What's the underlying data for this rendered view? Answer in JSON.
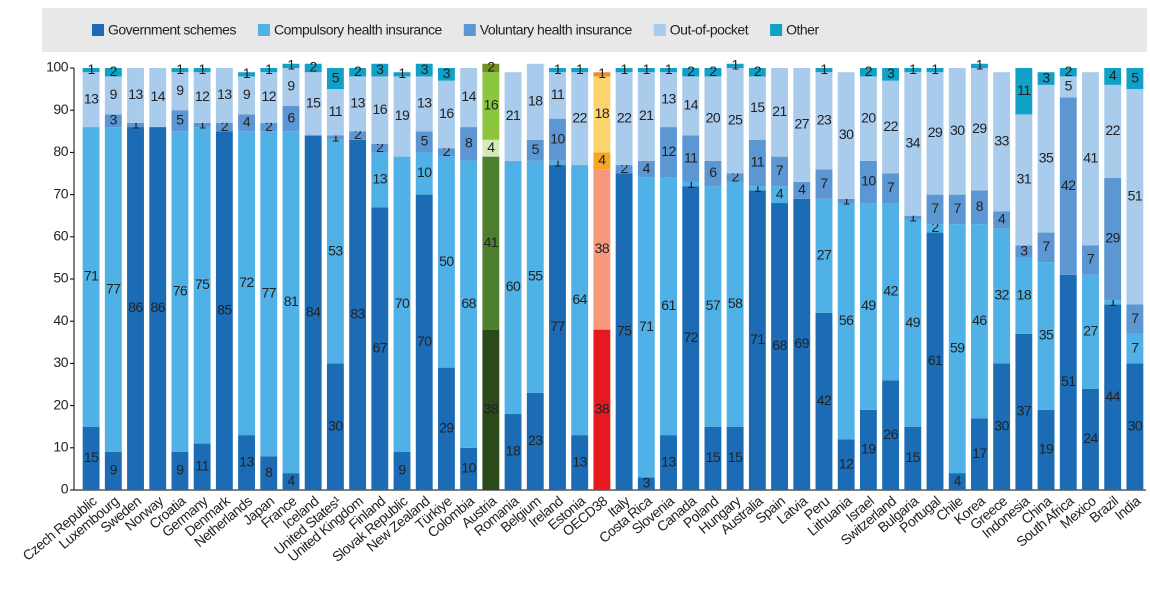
{
  "chart_data": {
    "type": "stacked_bar",
    "categories": [
      "Czech Republic",
      "Luxembourg",
      "Sweden",
      "Norway",
      "Croatia",
      "Germany",
      "Denmark",
      "Netherlands",
      "Japan",
      "France",
      "Iceland",
      "United States¹",
      "United Kingdom",
      "Finland",
      "Slovak Republic",
      "New Zealand",
      "Türkiye",
      "Colombia",
      "Austria",
      "Romania",
      "Belgium",
      "Ireland",
      "Estonia",
      "OECD38",
      "Italy",
      "Costa Rica",
      "Slovenia",
      "Canada",
      "Poland",
      "Hungary",
      "Australia",
      "Spain",
      "Latvia",
      "Peru",
      "Lithuania",
      "Israel",
      "Switzerland",
      "Bulgaria",
      "Portugal",
      "Chile",
      "Korea",
      "Greece",
      "Indonesia",
      "China",
      "South Africa",
      "Mexico",
      "Brazil",
      "India"
    ],
    "series": [
      {
        "name": "Government schemes",
        "color": "#1b6cb5",
        "values": [
          15,
          9,
          86,
          86,
          9,
          11,
          85,
          13,
          8,
          4,
          84,
          30,
          83,
          67,
          9,
          70,
          29,
          10,
          38,
          18,
          23,
          77,
          13,
          38,
          75,
          3,
          13,
          72,
          15,
          15,
          71,
          68,
          69,
          42,
          12,
          19,
          26,
          15,
          61,
          4,
          17,
          30,
          37,
          19,
          51,
          24,
          44,
          30
        ]
      },
      {
        "name": "Compulsory health insurance",
        "color": "#4fb1e6",
        "values": [
          71,
          77,
          0,
          0,
          76,
          75,
          0,
          72,
          77,
          81,
          0,
          53,
          0,
          13,
          70,
          10,
          50,
          68,
          41,
          60,
          55,
          1,
          64,
          38,
          0,
          71,
          61,
          1,
          57,
          58,
          1,
          4,
          0,
          27,
          56,
          49,
          42,
          49,
          2,
          59,
          46,
          32,
          18,
          35,
          0,
          27,
          1,
          7
        ]
      },
      {
        "name": "Voluntary health insurance",
        "color": "#5c97d4",
        "values": [
          0,
          3,
          1,
          0,
          5,
          1,
          2,
          4,
          2,
          6,
          0,
          1,
          2,
          2,
          0,
          5,
          2,
          8,
          4,
          0,
          5,
          10,
          0,
          4,
          2,
          4,
          12,
          11,
          6,
          2,
          11,
          7,
          4,
          7,
          1,
          10,
          7,
          1,
          7,
          7,
          8,
          4,
          3,
          7,
          42,
          7,
          29,
          7
        ]
      },
      {
        "name": "Out-of-pocket",
        "color": "#a9cbec",
        "values": [
          13,
          9,
          13,
          14,
          9,
          12,
          13,
          9,
          12,
          9,
          15,
          11,
          13,
          16,
          19,
          13,
          16,
          14,
          16,
          21,
          18,
          11,
          22,
          18,
          22,
          21,
          13,
          14,
          20,
          25,
          15,
          21,
          27,
          23,
          30,
          20,
          22,
          34,
          29,
          30,
          29,
          33,
          31,
          35,
          5,
          41,
          22,
          51
        ]
      },
      {
        "name": "Other",
        "color": "#11a0c6",
        "values": [
          1,
          2,
          0,
          0,
          1,
          1,
          0,
          1,
          1,
          1,
          2,
          5,
          2,
          3,
          1,
          3,
          3,
          0,
          2,
          0,
          0,
          1,
          1,
          1,
          1,
          1,
          1,
          2,
          2,
          1,
          2,
          0,
          0,
          1,
          0,
          2,
          3,
          1,
          1,
          0,
          1,
          0,
          11,
          3,
          2,
          0,
          4,
          5
        ]
      }
    ],
    "highlight": [
      {
        "index": 18,
        "colors": [
          "#2a4a1c",
          "#4d7f2f",
          "#d6e9b8",
          "#8cc63e",
          "#6f8f22"
        ]
      },
      {
        "index": 23,
        "colors": [
          "#e5191f",
          "#f7977c",
          "#f6a623",
          "#fdd36e",
          "#f08a30"
        ]
      }
    ],
    "ylim": [
      0,
      100
    ],
    "yticks": [
      0,
      10,
      20,
      30,
      40,
      50,
      60,
      70,
      80,
      90,
      100
    ],
    "grid": false,
    "legend": "top"
  }
}
